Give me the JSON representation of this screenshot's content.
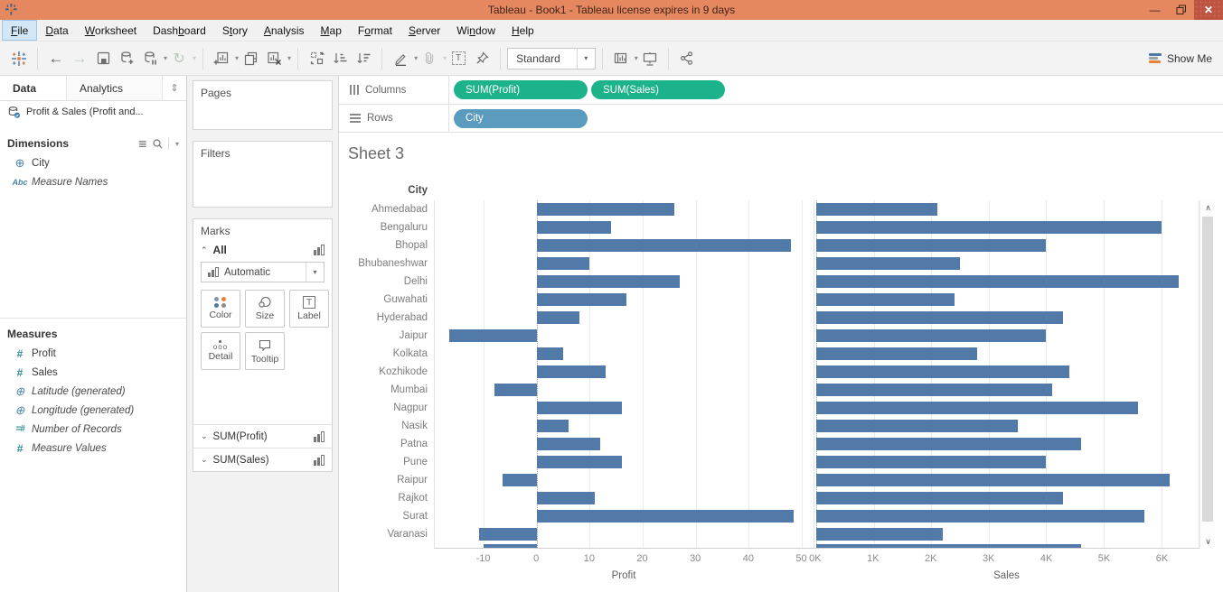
{
  "window": {
    "title": "Tableau - Book1 - Tableau license expires in 9 days",
    "controls": {
      "minimize": "minimize",
      "restore": "restore",
      "close": "close"
    }
  },
  "menubar": {
    "items": [
      {
        "label": "File",
        "u": 0
      },
      {
        "label": "Data",
        "u": 0
      },
      {
        "label": "Worksheet",
        "u": 0
      },
      {
        "label": "Dashboard",
        "u": 4
      },
      {
        "label": "Story",
        "u": 1
      },
      {
        "label": "Analysis",
        "u": 0
      },
      {
        "label": "Map",
        "u": 0
      },
      {
        "label": "Format",
        "u": 1
      },
      {
        "label": "Server",
        "u": 0
      },
      {
        "label": "Window",
        "u": 2
      },
      {
        "label": "Help",
        "u": 0
      }
    ]
  },
  "toolbar": {
    "fit_mode": "Standard",
    "show_me_label": "Show Me",
    "icons": [
      "tableau-logo",
      "undo",
      "redo",
      "save",
      "new-data-source",
      "pause-auto-updates",
      "run-auto-updates",
      "new-worksheet",
      "duplicate-sheet",
      "clear-sheet",
      "swap-rows-columns",
      "sort-ascending",
      "sort-descending",
      "highlight",
      "group-members",
      "show-mark-labels",
      "fix-axes",
      "fit-selector",
      "show-hide-cards",
      "presentation-mode",
      "share-workbook",
      "show-me"
    ]
  },
  "sidebar": {
    "tabs": {
      "data": "Data",
      "analytics": "Analytics"
    },
    "datasource": "Profit & Sales (Profit and...",
    "dimensions": {
      "header": "Dimensions",
      "items": [
        {
          "label": "City",
          "icon": "globe",
          "italic": false
        },
        {
          "label": "Measure Names",
          "icon": "abc",
          "italic": true
        }
      ]
    },
    "measures": {
      "header": "Measures",
      "items": [
        {
          "label": "Profit",
          "icon": "hash",
          "italic": false
        },
        {
          "label": "Sales",
          "icon": "hash",
          "italic": false
        },
        {
          "label": "Latitude (generated)",
          "icon": "globe",
          "italic": true
        },
        {
          "label": "Longitude (generated)",
          "icon": "globe",
          "italic": true
        },
        {
          "label": "Number of Records",
          "icon": "hasheq",
          "italic": true
        },
        {
          "label": "Measure Values",
          "icon": "hash",
          "italic": true
        }
      ]
    }
  },
  "shelves": {
    "pages": {
      "label": "Pages"
    },
    "filters": {
      "label": "Filters"
    },
    "marks": {
      "label": "Marks",
      "all_label": "All",
      "mark_type": "Automatic",
      "buttons": [
        "Color",
        "Size",
        "Label",
        "Detail",
        "Tooltip"
      ],
      "cards": [
        "SUM(Profit)",
        "SUM(Sales)"
      ]
    },
    "columns": {
      "label": "Columns",
      "pills": [
        {
          "label": "SUM(Profit)",
          "color": "#1db38a"
        },
        {
          "label": "SUM(Sales)",
          "color": "#1db38a"
        }
      ]
    },
    "rows": {
      "label": "Rows",
      "pills": [
        {
          "label": "City",
          "color": "#5b9bbd"
        }
      ]
    }
  },
  "sheet": {
    "title": "Sheet 3"
  },
  "chart_data": {
    "type": "bar",
    "orientation": "horizontal",
    "row_field": "City",
    "categories": [
      "Ahmedabad",
      "Bengaluru",
      "Bhopal",
      "Bhubaneshwar",
      "Delhi",
      "Guwahati",
      "Hyderabad",
      "Jaipur",
      "Kolkata",
      "Kozhikode",
      "Mumbai",
      "Nagpur",
      "Nasik",
      "Patna",
      "Pune",
      "Raipur",
      "Rajkot",
      "Surat",
      "Varanasi"
    ],
    "series": [
      {
        "name": "Profit",
        "values": [
          26,
          14,
          48,
          10,
          27,
          17,
          8,
          -16.5,
          5,
          13,
          -8,
          16,
          6,
          12,
          16,
          -6.5,
          11,
          48.5,
          -11
        ],
        "axis": {
          "label": "Profit",
          "min": -19.3,
          "max": 52.3,
          "ticks": [
            {
              "v": -10,
              "l": "-10"
            },
            {
              "v": 0,
              "l": "0"
            },
            {
              "v": 10,
              "l": "10"
            },
            {
              "v": 20,
              "l": "20"
            },
            {
              "v": 30,
              "l": "30"
            },
            {
              "v": 40,
              "l": "40"
            },
            {
              "v": 50,
              "l": "50"
            }
          ]
        }
      },
      {
        "name": "Sales",
        "values": [
          2100,
          6000,
          4000,
          2500,
          6300,
          2400,
          4300,
          4000,
          2800,
          4400,
          4100,
          5600,
          3500,
          4600,
          4000,
          6150,
          4300,
          5700,
          2200
        ],
        "axis": {
          "label": "Sales",
          "min": -30,
          "max": 6650,
          "ticks": [
            {
              "v": 0,
              "l": "0K"
            },
            {
              "v": 1000,
              "l": "1K"
            },
            {
              "v": 2000,
              "l": "2K"
            },
            {
              "v": 3000,
              "l": "3K"
            },
            {
              "v": 4000,
              "l": "4K"
            },
            {
              "v": 5000,
              "l": "5K"
            },
            {
              "v": 6000,
              "l": "6K"
            }
          ]
        }
      }
    ],
    "partial_next_row": {
      "profit": -10,
      "sales": 4600
    },
    "bar_color": "#527aa8",
    "grid": true,
    "legend": "none"
  },
  "colors": {
    "titlebar": "#e5885f",
    "close_button": "#bd5340",
    "pill_green": "#1db38a",
    "pill_blue": "#5b9bbd",
    "bar": "#527aa8",
    "mark_color_dots": [
      "#7b98b5",
      "#e8823a",
      "#4e79a7",
      "#8a8a8a"
    ],
    "show_me_bars": [
      "#4e79a7",
      "#9aa4ad",
      "#e8823a"
    ]
  }
}
